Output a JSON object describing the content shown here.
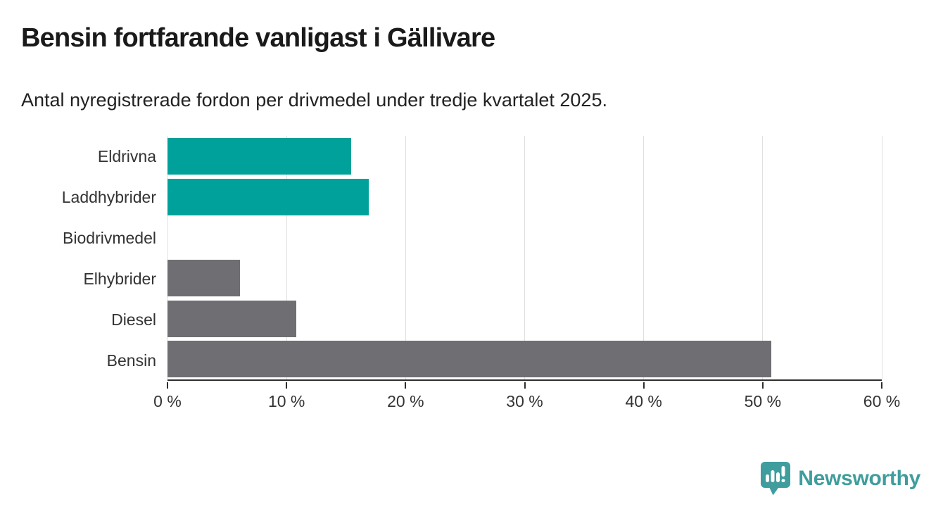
{
  "title": "Bensin fortfarande vanligast i Gällivare",
  "subtitle": "Antal nyregistrerade fordon per drivmedel under tredje kvartalet 2025.",
  "chart_data": {
    "type": "bar",
    "orientation": "horizontal",
    "title": "Bensin fortfarande vanligast i Gällivare",
    "subtitle": "Antal nyregistrerade fordon per drivmedel under tredje kvartalet 2025.",
    "categories": [
      "Eldrivna",
      "Laddhybrider",
      "Biodrivmedel",
      "Elhybrider",
      "Diesel",
      "Bensin"
    ],
    "values": [
      15.4,
      16.9,
      0,
      6.1,
      10.8,
      50.7
    ],
    "bar_colors": [
      "#00a19a",
      "#00a19a",
      "#00a19a",
      "#6e6e73",
      "#6e6e73",
      "#6e6e73"
    ],
    "unit": "%",
    "xlim": [
      0,
      60
    ],
    "x_ticks": [
      0,
      10,
      20,
      30,
      40,
      50,
      60
    ],
    "x_tick_labels": [
      "0 %",
      "10 %",
      "20 %",
      "30 %",
      "40 %",
      "50 %",
      "60 %"
    ],
    "grid": true,
    "legend": false
  },
  "branding": {
    "name": "Newsworthy",
    "icon": "newsworthy-logo-icon",
    "color": "#3f9d9d"
  },
  "colors": {
    "accent_teal": "#00a19a",
    "neutral_gray": "#6e6e73",
    "gridline": "#e0e0e0",
    "axis": "#2e2e2e",
    "text": "#333333",
    "title_text": "#1a1a1a",
    "background": "#ffffff"
  }
}
